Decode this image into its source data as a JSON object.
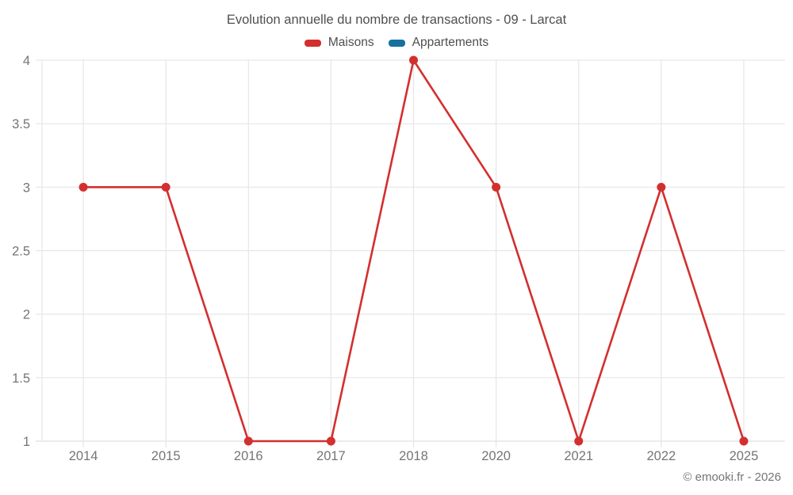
{
  "header": {
    "title": "Evolution annuelle du nombre de transactions - 09 - Larcat"
  },
  "legend": {
    "items": [
      {
        "label": "Maisons",
        "color": "#d32f2f"
      },
      {
        "label": "Appartements",
        "color": "#17709e"
      }
    ]
  },
  "chart_data": {
    "type": "line",
    "title": "Evolution annuelle du nombre de transactions - 09 - Larcat",
    "categories": [
      "2014",
      "2015",
      "2016",
      "2017",
      "2018",
      "2020",
      "2021",
      "2022",
      "2025"
    ],
    "series": [
      {
        "name": "Maisons",
        "color": "#d32f2f",
        "values": [
          3,
          3,
          1,
          1,
          4,
          3,
          1,
          3,
          1
        ]
      },
      {
        "name": "Appartements",
        "color": "#17709e",
        "values": []
      }
    ],
    "xlabel": "",
    "ylabel": "",
    "ylim": [
      1,
      4
    ],
    "yticks": [
      1,
      1.5,
      2,
      2.5,
      3,
      3.5,
      4
    ],
    "grid": "on",
    "legend_position": "top",
    "marker": "circle",
    "colors": {
      "grid": "#e6e6e6",
      "axis_line": "#e0e0e0",
      "tick_label": "#757575"
    }
  },
  "footer": {
    "credit": "© emooki.fr - 2026"
  }
}
